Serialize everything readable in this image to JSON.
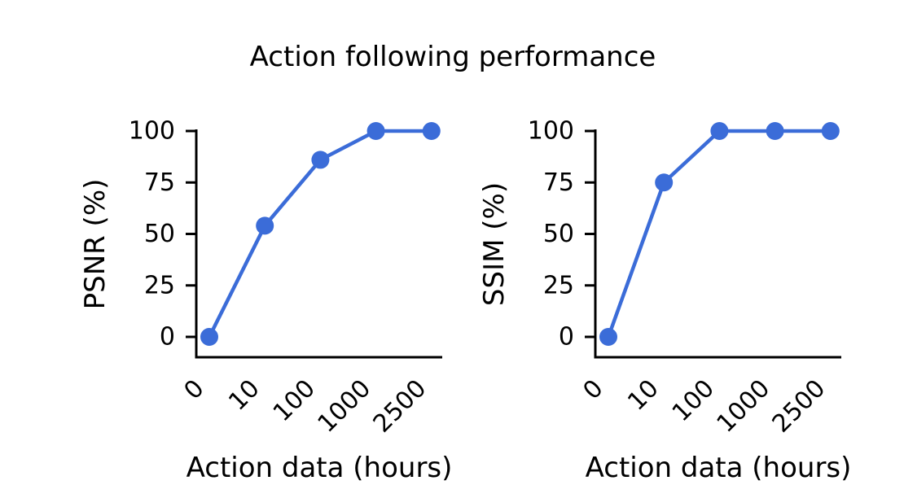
{
  "title": "Action following performance",
  "colors": {
    "line": "#3B6CD8",
    "marker": "#3B6CD8",
    "axis": "#000000",
    "background": "#FFFFFF"
  },
  "chart_data": [
    {
      "type": "line",
      "name": "psnr-panel",
      "xlabel": "Action data (hours)",
      "ylabel": "PSNR (%)",
      "categories": [
        "0",
        "10",
        "100",
        "1000",
        "2500"
      ],
      "values": [
        0,
        54,
        86,
        100,
        100
      ],
      "yticks": [
        0,
        25,
        50,
        75,
        100
      ],
      "ylim": [
        0,
        100
      ],
      "x_scale": "categorical",
      "grid": false,
      "legend": false,
      "marker": "circle"
    },
    {
      "type": "line",
      "name": "ssim-panel",
      "xlabel": "Action data (hours)",
      "ylabel": "SSIM (%)",
      "categories": [
        "0",
        "10",
        "100",
        "1000",
        "2500"
      ],
      "values": [
        0,
        75,
        100,
        100,
        100
      ],
      "yticks": [
        0,
        25,
        50,
        75,
        100
      ],
      "ylim": [
        0,
        100
      ],
      "x_scale": "categorical",
      "grid": false,
      "legend": false,
      "marker": "circle"
    }
  ]
}
